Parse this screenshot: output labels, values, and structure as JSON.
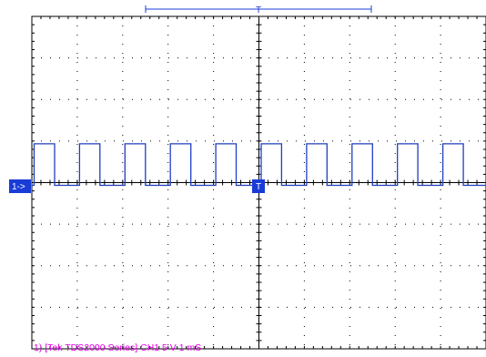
{
  "scope": {
    "channel_marker": "1->",
    "trigger_marker": "T",
    "trigger_position_marker": "T",
    "status_text": "1) [Tek TDS2000 Series] CH1 5 V  1 mS",
    "grid_divisions": {
      "horizontal": 10,
      "vertical": 8
    },
    "colors": {
      "frame": "#000000",
      "dots": "#000000",
      "trace": "#1f3fbf",
      "marker_bg": "#1a3cd6",
      "marker_text": "#ffffff",
      "status_text": "#e000e0",
      "background": "#ffffff"
    }
  },
  "chart_data": {
    "type": "line",
    "title": "",
    "xlabel": "",
    "ylabel": "",
    "x_scale_per_div": "1 mS",
    "y_scale_per_div": "5 V",
    "xlim_div": [
      0,
      10
    ],
    "ylim_div": [
      -4,
      4
    ],
    "series": [
      {
        "x": [
          0,
          0.05,
          0.05,
          0.5,
          0.5,
          1.05,
          1.05,
          1.5,
          1.5,
          2.05,
          2.05,
          2.5,
          2.5,
          3.05,
          3.05,
          3.5,
          3.5,
          4.05,
          4.05,
          4.5,
          4.5,
          5.05,
          5.05,
          5.5,
          5.5,
          6.05,
          6.05,
          6.5,
          6.5,
          7.05,
          7.05,
          7.5,
          7.5,
          8.05,
          8.05,
          8.5,
          8.5,
          9.05,
          9.05,
          9.5,
          9.5,
          10
        ],
        "y": [
          0,
          0,
          1,
          1,
          0,
          0,
          1,
          1,
          0,
          0,
          1,
          1,
          0,
          0,
          1,
          1,
          0,
          0,
          1,
          1,
          0,
          0,
          1,
          1,
          0,
          0,
          1,
          1,
          0,
          0,
          1,
          1,
          0,
          0,
          1,
          1,
          0,
          0,
          1,
          1,
          0,
          0
        ]
      }
    ]
  }
}
